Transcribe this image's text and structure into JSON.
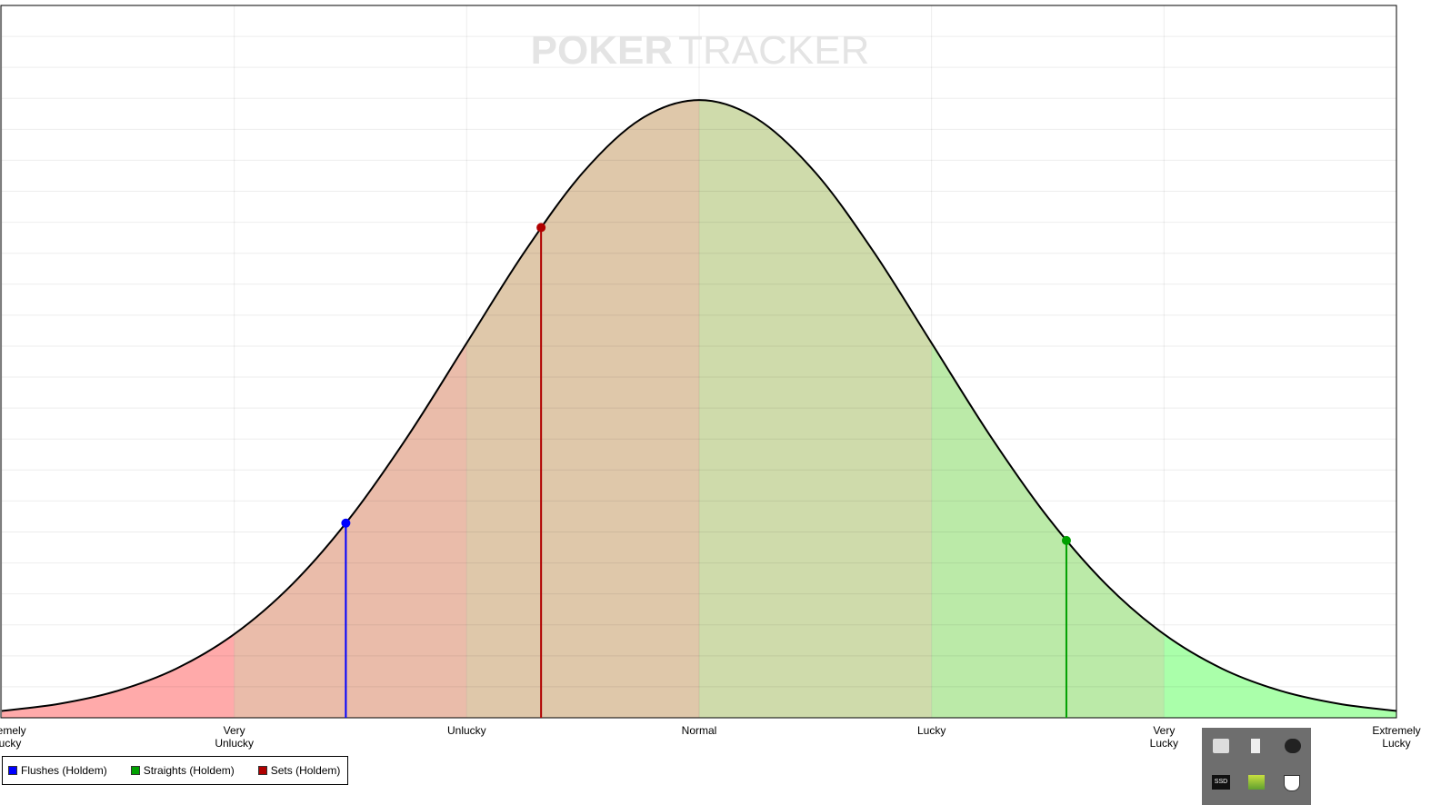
{
  "chart_data": {
    "type": "distribution",
    "watermark": [
      "PO",
      "KER",
      "TRACKER"
    ],
    "curve": {
      "x": [
        -3,
        -2.75,
        -2.5,
        -2.25,
        -2,
        -1.75,
        -1.5,
        -1.25,
        -1,
        -0.75,
        -0.5,
        -0.25,
        0,
        0.25,
        0.5,
        0.75,
        1,
        1.25,
        1.5,
        1.75,
        2,
        2.25,
        2.5,
        2.75,
        3
      ],
      "values": [
        0.0044,
        0.0091,
        0.0175,
        0.0317,
        0.054,
        0.0863,
        0.1295,
        0.1826,
        0.242,
        0.3011,
        0.3521,
        0.3867,
        0.3989,
        0.3867,
        0.3521,
        0.3011,
        0.242,
        0.1826,
        0.1295,
        0.0863,
        0.054,
        0.0317,
        0.0175,
        0.0091,
        0.0044
      ],
      "color": "#000000"
    },
    "zone_colors": [
      "#ffaaaa",
      "#eabcaa",
      "#dfc8aa",
      "#cfdbab",
      "#bbeaa8",
      "#aaffaa"
    ],
    "xlim": [
      -3,
      3
    ],
    "xticks": [
      {
        "value": -3,
        "label": "Extremely\nUnlucky"
      },
      {
        "value": -2,
        "label": "Very\nUnlucky"
      },
      {
        "value": -1,
        "label": "Unlucky"
      },
      {
        "value": 0,
        "label": "Normal"
      },
      {
        "value": 1,
        "label": "Lucky"
      },
      {
        "value": 2,
        "label": "Very\nLucky"
      },
      {
        "value": 3,
        "label": "Extremely\nLucky"
      }
    ],
    "ylim": [
      0,
      0.46
    ],
    "yticks": [
      0,
      0.02,
      0.04,
      0.06,
      0.08,
      0.1,
      0.12,
      0.14,
      0.16,
      0.18,
      0.2,
      0.22,
      0.24,
      0.26,
      0.28,
      0.3,
      0.32,
      0.34,
      0.36,
      0.38,
      0.4,
      0.42,
      0.44,
      0.46
    ],
    "grid": true,
    "series": [
      {
        "name": "Flushes (Holdem)",
        "color": "#0000ff",
        "x": [
          -1.52
        ],
        "values": [
          0.1257
        ]
      },
      {
        "name": "Straights (Holdem)",
        "color": "#00a000",
        "x": [
          1.58
        ],
        "values": [
          0.1145
        ]
      },
      {
        "name": "Sets (Holdem)",
        "color": "#b00000",
        "x": [
          -0.68
        ],
        "values": [
          0.3166
        ]
      }
    ],
    "tray_label": "SSD"
  }
}
